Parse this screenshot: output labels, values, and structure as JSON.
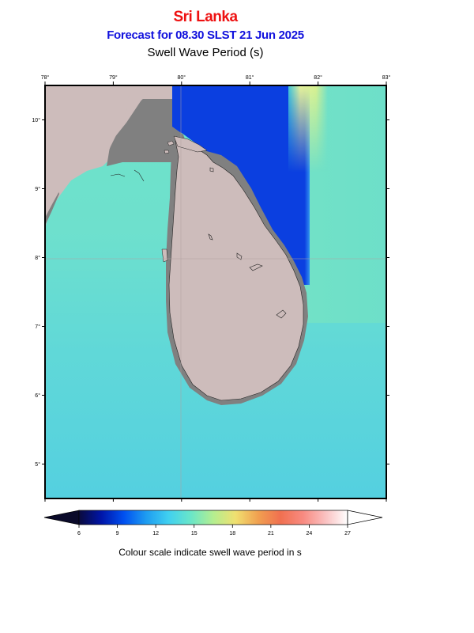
{
  "header": {
    "region": "Sri Lanka",
    "forecast": "Forecast for  08.30 SLST 21 Jun 2025",
    "parameter": "Swell Wave Period (s)"
  },
  "map": {
    "lon_range": [
      78,
      83
    ],
    "lat_range": [
      4.5,
      10.5
    ],
    "lon_ticks": [
      "78°",
      "79°",
      "80°",
      "81°",
      "82°",
      "83°"
    ],
    "lat_ticks": [
      "10°",
      "9°",
      "8°",
      "7°",
      "6°",
      "5°"
    ],
    "colors": {
      "land": "#cdbcbb",
      "masked_coast": "#808080",
      "sea_long": "#54d0e0",
      "sea_mid": "#6fe0c9",
      "sea_short": "#0b3fe0",
      "sea_band": "#e0f08a"
    }
  },
  "colorbar": {
    "ticks": [
      "6",
      "9",
      "12",
      "15",
      "18",
      "21",
      "24",
      "27"
    ],
    "range": [
      6,
      27
    ],
    "caption": "Colour scale indicate swell wave period in s",
    "stops": [
      "#0a0a3c",
      "#0015a8",
      "#0050f0",
      "#1e9cf0",
      "#40d0f0",
      "#6ae6c8",
      "#b4ee90",
      "#f0e070",
      "#f0a050",
      "#f07050",
      "#f88a80",
      "#fac0c0",
      "#ffffff"
    ]
  }
}
